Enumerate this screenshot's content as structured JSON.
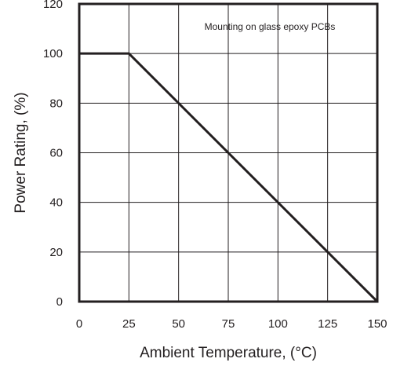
{
  "chart_data": {
    "type": "line",
    "xlabel": "Ambient Temperature, (°C)",
    "ylabel": "Power Rating, (%)",
    "annotation": "Mounting on glass epoxy PCBs",
    "xlim": [
      0,
      150
    ],
    "ylim": [
      0,
      120
    ],
    "x_ticks": [
      "0",
      "25",
      "50",
      "75",
      "100",
      "125",
      "150"
    ],
    "y_ticks": [
      "120",
      "100",
      "80",
      "60",
      "40",
      "20",
      "0"
    ],
    "grid": true,
    "series": [
      {
        "x": [
          0,
          25,
          150
        ],
        "y": [
          100,
          100,
          0
        ]
      }
    ],
    "colors": {
      "line": "#231f20",
      "grid": "#231f20",
      "frame": "#231f20"
    }
  }
}
